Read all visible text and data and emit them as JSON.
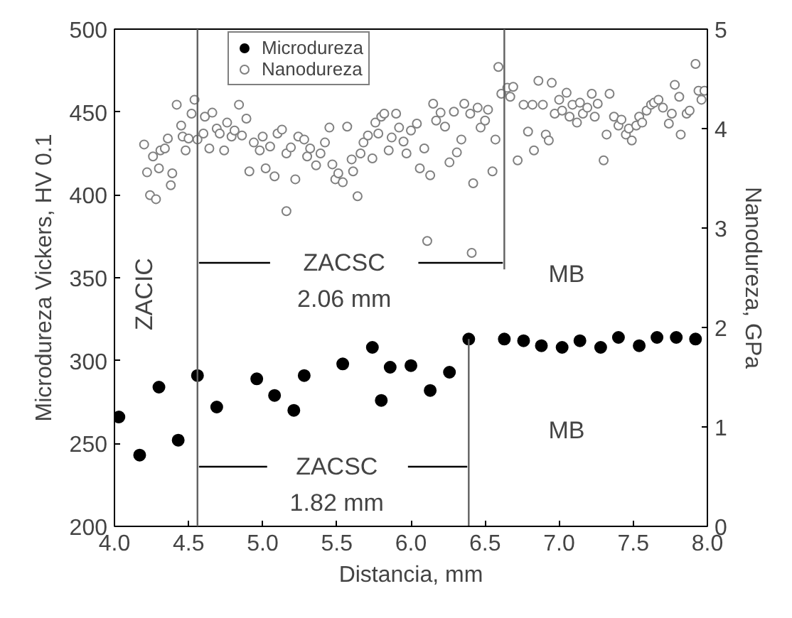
{
  "chart_data": {
    "type": "scatter",
    "xlabel": "Distancia, mm",
    "ylabel": "Microdureza Vickers, HV 0.1",
    "y2label": "Nanodureza, GPa",
    "xlim": [
      4.0,
      8.0
    ],
    "xticks": [
      {
        "value": 4,
        "label": "4.0"
      },
      4.5,
      {
        "value": 5,
        "label": "5.0"
      },
      5.5,
      {
        "value": 6,
        "label": "6.0"
      },
      6.5,
      {
        "value": 7,
        "label": "7.0"
      },
      7.5,
      {
        "value": 8,
        "label": "8.0"
      }
    ],
    "ylim": [
      200,
      500
    ],
    "yticks": [
      200,
      250,
      300,
      350,
      400,
      450,
      500
    ],
    "y2lim": [
      0,
      5
    ],
    "y2ticks": [
      0,
      1,
      2,
      3,
      4,
      5
    ],
    "marker": "circle",
    "legend": "top",
    "grid": false,
    "series": [
      {
        "name": "Microdureza",
        "color": "#000000",
        "x": [
          4.03,
          4.17,
          4.3,
          4.43,
          4.56,
          4.69,
          4.96,
          5.08,
          5.21,
          5.28,
          5.54,
          5.74,
          5.8,
          5.86,
          6.0,
          6.13,
          6.26,
          6.39,
          6.63,
          6.76,
          6.88,
          7.02,
          7.14,
          7.28,
          7.4,
          7.54,
          7.66,
          7.79,
          7.92
        ],
        "values": [
          266,
          243,
          284,
          252,
          291,
          272,
          289,
          279,
          270,
          291,
          298,
          308,
          276,
          296,
          297,
          282,
          293,
          313,
          313,
          312,
          309,
          308,
          312,
          308,
          314,
          309,
          314,
          314,
          313
        ]
      },
      {
        "name": "Nanodureza",
        "color": "#808080",
        "axis": "y2",
        "x": [
          4.2,
          4.22,
          4.24,
          4.26,
          4.28,
          4.3,
          4.31,
          4.34,
          4.36,
          4.38,
          4.39,
          4.42,
          4.45,
          4.46,
          4.48,
          4.5,
          4.52,
          4.54,
          4.56,
          4.6,
          4.61,
          4.64,
          4.66,
          4.69,
          4.71,
          4.74,
          4.76,
          4.79,
          4.81,
          4.84,
          4.86,
          4.89,
          4.91,
          4.94,
          4.98,
          5.0,
          5.02,
          5.05,
          5.08,
          5.1,
          5.13,
          5.16,
          5.16,
          5.19,
          5.22,
          5.24,
          5.28,
          5.3,
          5.32,
          5.36,
          5.39,
          5.42,
          5.45,
          5.47,
          5.49,
          5.51,
          5.54,
          5.57,
          5.6,
          5.61,
          5.64,
          5.66,
          5.68,
          5.71,
          5.74,
          5.76,
          5.78,
          5.8,
          5.82,
          5.85,
          5.87,
          5.9,
          5.92,
          5.95,
          5.97,
          6.0,
          6.04,
          6.06,
          6.09,
          6.11,
          6.13,
          6.15,
          6.17,
          6.2,
          6.23,
          6.26,
          6.29,
          6.31,
          6.34,
          6.36,
          6.4,
          6.41,
          6.42,
          6.45,
          6.47,
          6.5,
          6.52,
          6.55,
          6.57,
          6.59,
          6.61,
          6.65,
          6.67,
          6.69,
          6.72,
          6.76,
          6.79,
          6.82,
          6.83,
          6.86,
          6.89,
          6.91,
          6.93,
          6.95,
          6.97,
          7.0,
          7.02,
          7.05,
          7.07,
          7.09,
          7.12,
          7.14,
          7.16,
          7.19,
          7.22,
          7.24,
          7.26,
          7.3,
          7.32,
          7.34,
          7.37,
          7.4,
          7.42,
          7.45,
          7.47,
          7.49,
          7.52,
          7.54,
          7.56,
          7.59,
          7.62,
          7.64,
          7.67,
          7.7,
          7.74,
          7.76,
          7.78,
          7.81,
          7.82,
          7.86,
          7.88,
          7.92,
          7.94,
          7.96,
          7.98
        ],
        "values": [
          3.84,
          3.56,
          3.33,
          3.72,
          3.29,
          3.6,
          3.78,
          3.8,
          3.9,
          3.43,
          3.55,
          4.24,
          4.03,
          3.92,
          3.78,
          3.9,
          4.15,
          4.29,
          3.89,
          3.95,
          4.12,
          3.8,
          4.16,
          4.0,
          3.95,
          3.78,
          4.06,
          3.92,
          3.98,
          4.24,
          3.93,
          4.1,
          3.57,
          3.86,
          3.78,
          3.92,
          3.6,
          3.82,
          3.52,
          3.95,
          3.99,
          3.17,
          3.75,
          3.81,
          3.49,
          3.92,
          3.89,
          3.72,
          3.8,
          3.63,
          3.75,
          3.86,
          4.01,
          3.64,
          3.49,
          3.55,
          3.46,
          4.02,
          3.69,
          3.57,
          3.32,
          3.75,
          3.86,
          3.93,
          3.7,
          4.06,
          3.95,
          4.12,
          4.15,
          3.78,
          3.91,
          4.15,
          4.01,
          3.87,
          3.75,
          3.98,
          4.05,
          3.6,
          3.8,
          2.87,
          3.53,
          4.25,
          4.08,
          4.16,
          4.02,
          3.66,
          4.17,
          3.76,
          3.89,
          4.25,
          4.15,
          2.75,
          3.45,
          4.21,
          4.01,
          4.08,
          4.19,
          3.57,
          3.89,
          4.62,
          4.35,
          4.41,
          4.32,
          4.42,
          3.68,
          4.24,
          3.97,
          4.24,
          3.78,
          4.48,
          4.24,
          3.94,
          3.88,
          4.46,
          4.15,
          4.29,
          4.18,
          4.36,
          4.12,
          4.24,
          4.06,
          4.26,
          4.15,
          4.21,
          4.35,
          4.12,
          4.25,
          3.68,
          3.94,
          4.35,
          4.12,
          4.03,
          4.09,
          3.94,
          4.0,
          3.88,
          4.03,
          4.12,
          4.06,
          4.18,
          4.24,
          4.26,
          4.29,
          4.21,
          4.05,
          4.15,
          4.44,
          4.32,
          3.94,
          4.15,
          4.18,
          4.65,
          4.38,
          4.29,
          4.38
        ]
      },
      {
        "type": "line",
        "marker": "none",
        "color": "#606060",
        "x": [
          6.63,
          6.63
        ],
        "values": [
          500,
          355
        ]
      },
      {
        "type": "line",
        "marker": "none",
        "color": "#606060",
        "x": [
          6.39,
          6.39
        ],
        "values": [
          313,
          200
        ]
      },
      {
        "type": "line",
        "marker": "none",
        "color": "#000000",
        "x": [
          5.05,
          4.57
        ],
        "values": [
          359,
          359
        ]
      },
      {
        "type": "line",
        "marker": "none",
        "color": "#000000",
        "x": [
          6.05,
          6.62
        ],
        "values": [
          359,
          359
        ]
      },
      {
        "type": "line",
        "marker": "none",
        "color": "#000000",
        "x": [
          5.03,
          4.57
        ],
        "values": [
          236,
          236
        ]
      },
      {
        "type": "line",
        "marker": "none",
        "color": "#000000",
        "x": [
          5.98,
          6.38
        ],
        "values": [
          236,
          236
        ]
      }
    ],
    "ref_lines": [
      {
        "axis": "x",
        "value": 4.56,
        "color": "#606060"
      }
    ],
    "annotations": [
      "ZACIC",
      "ZACSC",
      "2.06 mm",
      "ZACSC",
      "1.82 mm",
      "MB",
      "MB"
    ]
  }
}
